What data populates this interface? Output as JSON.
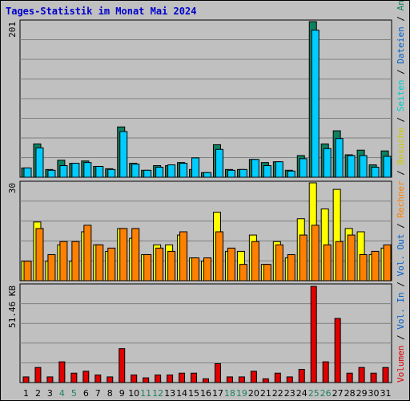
{
  "title": "Tages-Statistik im Monat Mai 2024",
  "colors": {
    "background": "#c0c0c0",
    "title": "#0000cc",
    "anfragen": "#0f8060",
    "dateien": "#00ccff",
    "seiten": "#00cccc",
    "besuche": "#ffff00",
    "rechner": "#ff8000",
    "volumen": "#e00000",
    "weekend_day": "#208060",
    "weekday": "#000000",
    "grid": "#808080",
    "separator": "#000000"
  },
  "chart_data": [
    {
      "type": "bar",
      "panel": "top",
      "ymax_label": "201",
      "ylim": [
        0,
        201
      ],
      "categories": [
        "1",
        "2",
        "3",
        "4",
        "5",
        "6",
        "7",
        "8",
        "9",
        "10",
        "11",
        "12",
        "13",
        "14",
        "15",
        "16",
        "17",
        "18",
        "19",
        "20",
        "21",
        "22",
        "23",
        "24",
        "25",
        "26",
        "27",
        "28",
        "29",
        "30",
        "31"
      ],
      "series": [
        {
          "name": "Anfragen",
          "color": "#0f8060",
          "values": [
            12,
            43,
            10,
            22,
            18,
            21,
            14,
            11,
            65,
            18,
            9,
            15,
            15,
            19,
            10,
            6,
            42,
            10,
            10,
            23,
            19,
            20,
            9,
            28,
            201,
            43,
            60,
            29,
            35,
            16,
            34
          ]
        },
        {
          "name": "Dateien",
          "color": "#00ccff",
          "values": [
            12,
            38,
            9,
            15,
            18,
            19,
            14,
            10,
            59,
            17,
            9,
            13,
            16,
            18,
            25,
            6,
            36,
            9,
            10,
            23,
            15,
            20,
            8,
            24,
            190,
            37,
            50,
            28,
            28,
            13,
            27
          ]
        }
      ]
    },
    {
      "type": "bar",
      "panel": "middle",
      "ymax_label": "30",
      "ylim": [
        0,
        30
      ],
      "series": [
        {
          "name": "Besuche",
          "color": "#ffff00",
          "values": [
            6,
            18,
            6,
            11,
            6,
            15,
            11,
            9,
            16,
            13,
            8,
            11,
            11,
            14,
            7,
            6,
            21,
            9,
            9,
            14,
            5,
            12,
            7,
            19,
            30,
            22,
            28,
            16,
            15,
            8,
            10
          ]
        },
        {
          "name": "Rechner",
          "color": "#ff8000",
          "values": [
            6,
            16,
            8,
            12,
            12,
            17,
            11,
            10,
            16,
            16,
            8,
            10,
            9,
            15,
            7,
            7,
            15,
            10,
            5,
            12,
            5,
            11,
            8,
            14,
            17,
            11,
            12,
            14,
            8,
            9,
            11
          ]
        }
      ]
    },
    {
      "type": "bar",
      "panel": "bottom",
      "ymax_label": "51.46 KB",
      "ylim": [
        0,
        51.46
      ],
      "unit": "KB",
      "series": [
        {
          "name": "Volumen",
          "color": "#e00000",
          "values": [
            3,
            8,
            3,
            11,
            5,
            6,
            4,
            3,
            18,
            4,
            2.5,
            4,
            4,
            5,
            5,
            2,
            10,
            3,
            3,
            6,
            2,
            5,
            3,
            7,
            51,
            11,
            34,
            5,
            8,
            5,
            8
          ]
        }
      ]
    }
  ],
  "weekend_days": [
    "4",
    "5",
    "11",
    "12",
    "18",
    "19",
    "25",
    "26"
  ],
  "legend_right": {
    "bottom_line": [
      {
        "text": "Volumen",
        "color": "#e00000"
      },
      {
        "text": " / ",
        "color": "#000000"
      },
      {
        "text": "Vol. In",
        "color": "#0060cc"
      },
      {
        "text": " / ",
        "color": "#000000"
      },
      {
        "text": "Vol. Out",
        "color": "#0060cc"
      },
      {
        "text": " / ",
        "color": "#000000"
      },
      {
        "text": "Rechner",
        "color": "#ff8000"
      },
      {
        "text": " / ",
        "color": "#000000"
      },
      {
        "text": "Besuche",
        "color": "#cccc00"
      },
      {
        "text": " / ",
        "color": "#000000"
      },
      {
        "text": "Seiten",
        "color": "#00cccc"
      },
      {
        "text": " / ",
        "color": "#000000"
      },
      {
        "text": "Dateien",
        "color": "#0060cc"
      },
      {
        "text": " / ",
        "color": "#000000"
      },
      {
        "text": "Anfragen",
        "color": "#0f8060"
      }
    ]
  }
}
